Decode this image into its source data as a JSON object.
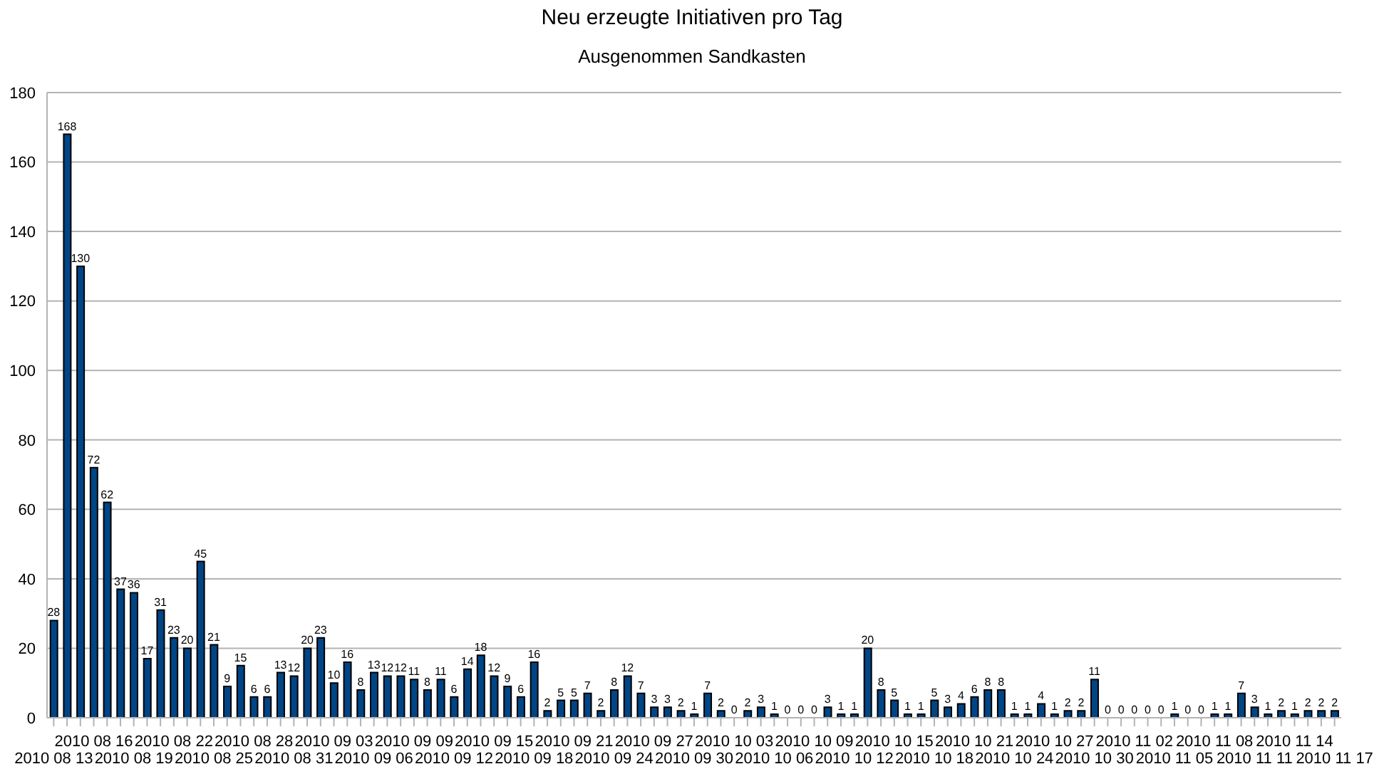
{
  "chart_data": {
    "type": "bar",
    "title": "Neu erzeugte Initiativen pro Tag",
    "subtitle": "Ausgenommen Sandkasten",
    "categories": [
      "2010 08 13",
      null,
      null,
      "2010 08 16",
      null,
      null,
      "2010 08 19",
      null,
      null,
      "2010 08 22",
      null,
      null,
      "2010 08 25",
      null,
      null,
      "2010 08 28",
      null,
      null,
      "2010 08 31",
      null,
      null,
      "2010 09 03",
      null,
      null,
      "2010 09 06",
      null,
      null,
      "2010 09 09",
      null,
      null,
      "2010 09 12",
      null,
      null,
      "2010 09 15",
      null,
      null,
      "2010 09 18",
      null,
      null,
      "2010 09 21",
      null,
      null,
      "2010 09 24",
      null,
      null,
      "2010 09 27",
      null,
      null,
      "2010 09 30",
      null,
      null,
      "2010 10 03",
      null,
      null,
      "2010 10 06",
      null,
      null,
      "2010 10 09",
      null,
      null,
      "2010 10 12",
      null,
      null,
      "2010 10 15",
      null,
      null,
      "2010 10 18",
      null,
      null,
      "2010 10 21",
      null,
      null,
      "2010 10 24",
      null,
      null,
      "2010 10 27",
      null,
      null,
      "2010 10 30",
      null,
      null,
      "2010 11 02",
      null,
      null,
      "2010 11 05",
      null,
      null,
      "2010 11 08",
      null,
      null,
      "2010 11 11",
      null,
      null,
      "2010 11 14",
      null,
      null,
      "2010 11 17"
    ],
    "values": [
      28,
      168,
      130,
      72,
      62,
      37,
      36,
      17,
      31,
      23,
      20,
      45,
      21,
      9,
      15,
      6,
      6,
      13,
      12,
      20,
      23,
      10,
      16,
      8,
      13,
      12,
      12,
      11,
      8,
      11,
      6,
      14,
      18,
      12,
      9,
      6,
      16,
      2,
      5,
      5,
      7,
      2,
      8,
      12,
      7,
      3,
      3,
      2,
      1,
      7,
      2,
      0,
      2,
      3,
      1,
      0,
      0,
      0,
      3,
      1,
      1,
      20,
      8,
      5,
      1,
      1,
      5,
      3,
      4,
      6,
      8,
      8,
      1,
      1,
      4,
      1,
      2,
      2,
      11,
      0,
      0,
      0,
      0,
      0,
      1,
      0,
      0,
      1,
      1,
      7,
      3,
      1,
      2,
      1,
      2,
      2,
      2
    ],
    "color": "#004586",
    "ylim": [
      0,
      180
    ],
    "yticks": [
      0,
      20,
      40,
      60,
      80,
      100,
      120,
      140,
      160,
      180
    ],
    "grid": "y",
    "data_labels": true,
    "legend": false
  }
}
